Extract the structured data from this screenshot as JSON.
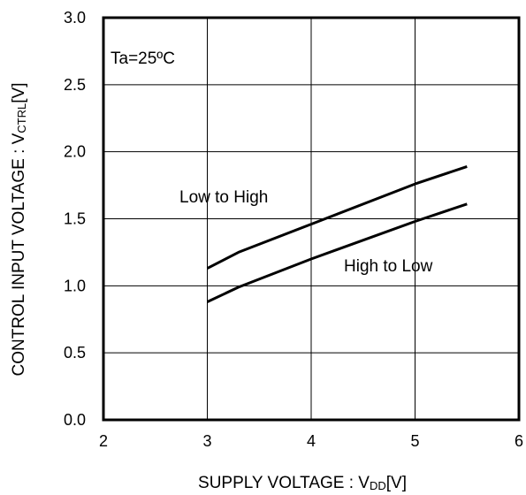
{
  "chart_data": {
    "type": "line",
    "xlabel": "SUPPLY VOLTAGE : V",
    "xlabel_sub": "DD",
    "xlabel_unit": "[V]",
    "ylabel": "CONTROL INPUT VOLTAGE : V",
    "ylabel_sub": "CTRL",
    "ylabel_unit": "[V]",
    "xlim": [
      2,
      6
    ],
    "ylim": [
      0,
      3.0
    ],
    "x_ticks": [
      "2",
      "3",
      "4",
      "5",
      "6"
    ],
    "y_ticks": [
      "0.0",
      "0.5",
      "1.0",
      "1.5",
      "2.0",
      "2.5",
      "3.0"
    ],
    "grid": true,
    "series": [
      {
        "name": "Low to High",
        "x": [
          3.0,
          3.3,
          4.0,
          5.0,
          5.5
        ],
        "y": [
          1.13,
          1.25,
          1.46,
          1.76,
          1.89
        ]
      },
      {
        "name": "High to Low",
        "x": [
          3.0,
          3.3,
          4.0,
          5.0,
          5.5
        ],
        "y": [
          0.88,
          0.99,
          1.2,
          1.48,
          1.61
        ]
      }
    ],
    "annotations": [
      {
        "text": "Ta=25ºC"
      }
    ]
  }
}
